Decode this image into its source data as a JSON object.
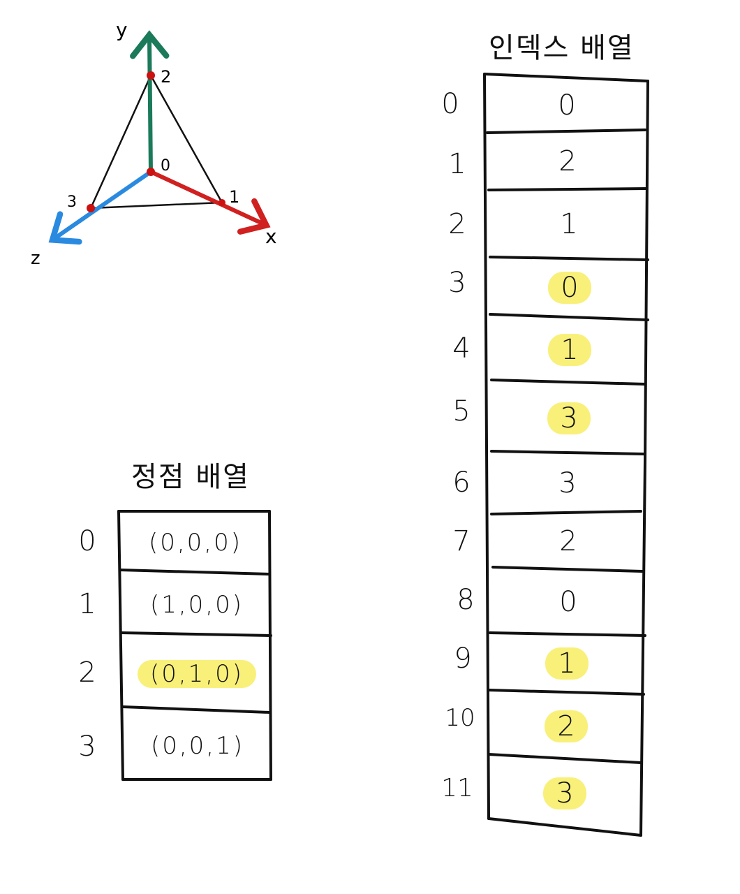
{
  "colors": {
    "ink": "#111111",
    "y_axis": "#1a7a5a",
    "x_axis": "#d02020",
    "z_axis": "#2a8ae0",
    "vertex_dot": "#cc1111",
    "highlight": "#f9f07a"
  },
  "axes": {
    "x_label": "x",
    "y_label": "y",
    "z_label": "z",
    "vertex_labels": [
      "0",
      "1",
      "2",
      "3"
    ]
  },
  "vertex_array": {
    "title": "정점 배열",
    "indices": [
      "0",
      "1",
      "2",
      "3"
    ],
    "values": [
      "(0,0,0)",
      "(1,0,0)",
      "(0,1,0)",
      "(0,0,1)"
    ],
    "highlighted": [
      false,
      false,
      true,
      false
    ]
  },
  "index_array": {
    "title": "인덱스 배열",
    "indices": [
      "0",
      "1",
      "2",
      "3",
      "4",
      "5",
      "6",
      "7",
      "8",
      "9",
      "10",
      "11"
    ],
    "values": [
      "0",
      "2",
      "1",
      "0",
      "1",
      "3",
      "3",
      "2",
      "0",
      "1",
      "2",
      "3"
    ],
    "highlighted": [
      false,
      false,
      false,
      true,
      true,
      true,
      false,
      false,
      false,
      true,
      true,
      true
    ]
  }
}
